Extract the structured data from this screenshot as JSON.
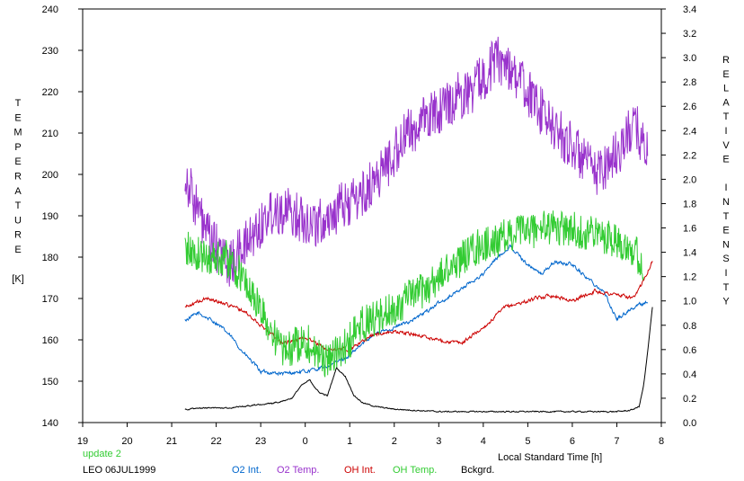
{
  "chart_data": {
    "type": "line",
    "xlabel": "Local Standard Time [h]",
    "ylabel_left": [
      "T",
      "E",
      "M",
      "P",
      "E",
      "R",
      "A",
      "T",
      "U",
      "R",
      "E",
      "",
      "[K]"
    ],
    "ylabel_right": [
      "R",
      "E",
      "L",
      "A",
      "T",
      "I",
      "V",
      "E",
      "",
      "I",
      "N",
      "T",
      "E",
      "N",
      "S",
      "I",
      "T",
      "Y"
    ],
    "x_ticks": [
      "19",
      "20",
      "21",
      "22",
      "23",
      "0",
      "1",
      "2",
      "3",
      "4",
      "5",
      "6",
      "7",
      "8"
    ],
    "y_left_ticks": [
      "140",
      "150",
      "160",
      "170",
      "180",
      "190",
      "200",
      "210",
      "220",
      "230",
      "240"
    ],
    "y_right_ticks": [
      "0.0",
      "0.2",
      "0.4",
      "0.6",
      "0.8",
      "1.0",
      "1.2",
      "1.4",
      "1.6",
      "1.8",
      "2.0",
      "2.2",
      "2.4",
      "2.6",
      "2.8",
      "3.0",
      "3.2",
      "3.4"
    ],
    "xlim": [
      19,
      32
    ],
    "ylim_left": [
      140,
      240
    ],
    "ylim_right": [
      0,
      3.4
    ],
    "grid": false,
    "footer": {
      "update": "update 2",
      "station": "LEO 06JUL1999"
    },
    "series": [
      {
        "name": "O2 Int.",
        "axis": "right",
        "color": "#0066cc",
        "noise": 0.012,
        "x": [
          21.3,
          21.6,
          22.0,
          22.3,
          22.6,
          23.0,
          23.5,
          24.0,
          24.5,
          25.0,
          25.5,
          26.0,
          26.5,
          27.0,
          27.5,
          28.0,
          28.3,
          28.6,
          29.0,
          29.3,
          29.6,
          30.0,
          30.3,
          30.7,
          31.0,
          31.3,
          31.7
        ],
        "y": [
          0.84,
          0.9,
          0.82,
          0.72,
          0.58,
          0.42,
          0.4,
          0.42,
          0.46,
          0.55,
          0.72,
          0.78,
          0.86,
          0.98,
          1.1,
          1.22,
          1.35,
          1.45,
          1.3,
          1.22,
          1.32,
          1.3,
          1.2,
          1.08,
          0.85,
          0.93,
          1.0
        ]
      },
      {
        "name": "O2 Temp.",
        "axis": "left",
        "color": "#9933cc",
        "noise": 6,
        "x": [
          21.3,
          21.8,
          22.3,
          22.8,
          23.3,
          23.8,
          24.3,
          24.8,
          25.3,
          25.8,
          26.3,
          26.8,
          27.3,
          27.8,
          28.3,
          28.6,
          29.0,
          29.5,
          30.0,
          30.5,
          31.0,
          31.4,
          31.7
        ],
        "y": [
          200,
          185,
          178,
          185,
          192,
          190,
          188,
          192,
          195,
          202,
          210,
          214,
          218,
          221,
          228,
          226,
          220,
          212,
          207,
          200,
          205,
          212,
          205
        ]
      },
      {
        "name": "OH Int.",
        "axis": "right",
        "color": "#cc0000",
        "noise": 0.012,
        "x": [
          21.3,
          21.8,
          22.2,
          22.6,
          23.0,
          23.5,
          24.0,
          24.5,
          25.0,
          25.5,
          26.0,
          26.5,
          27.0,
          27.5,
          28.0,
          28.5,
          29.0,
          29.5,
          30.0,
          30.5,
          31.0,
          31.4,
          31.8
        ],
        "y": [
          0.95,
          1.02,
          0.98,
          0.92,
          0.8,
          0.65,
          0.7,
          0.6,
          0.6,
          0.72,
          0.75,
          0.72,
          0.68,
          0.65,
          0.78,
          0.95,
          1.0,
          1.05,
          1.0,
          1.08,
          1.05,
          1.02,
          1.33
        ]
      },
      {
        "name": "OH Temp.",
        "axis": "left",
        "color": "#33cc33",
        "noise": 4.5,
        "x": [
          21.3,
          21.7,
          22.2,
          22.6,
          23.0,
          23.5,
          24.0,
          24.4,
          24.8,
          25.3,
          25.8,
          26.3,
          26.8,
          27.3,
          27.8,
          28.3,
          28.8,
          29.3,
          29.8,
          30.3,
          30.8,
          31.3,
          31.6
        ],
        "y": [
          182,
          180,
          180,
          175,
          167,
          157,
          160,
          155,
          157,
          164,
          166,
          170,
          173,
          178,
          182,
          184,
          186,
          187,
          187,
          186,
          185,
          183,
          178
        ]
      },
      {
        "name": "Bckgrd.",
        "axis": "right",
        "color": "#000000",
        "noise": 0.004,
        "x": [
          21.3,
          21.8,
          22.3,
          22.8,
          23.3,
          23.7,
          23.9,
          24.1,
          24.3,
          24.5,
          24.7,
          24.9,
          25.1,
          25.3,
          25.6,
          26.0,
          26.5,
          27.0,
          27.5,
          28.0,
          28.5,
          29.0,
          29.5,
          30.0,
          30.5,
          31.0,
          31.3,
          31.5,
          31.6,
          31.7,
          31.8
        ],
        "y": [
          0.11,
          0.12,
          0.12,
          0.14,
          0.16,
          0.2,
          0.3,
          0.35,
          0.25,
          0.22,
          0.45,
          0.38,
          0.22,
          0.16,
          0.13,
          0.11,
          0.1,
          0.09,
          0.09,
          0.09,
          0.09,
          0.09,
          0.09,
          0.09,
          0.09,
          0.09,
          0.1,
          0.13,
          0.3,
          0.6,
          0.95
        ]
      }
    ]
  }
}
